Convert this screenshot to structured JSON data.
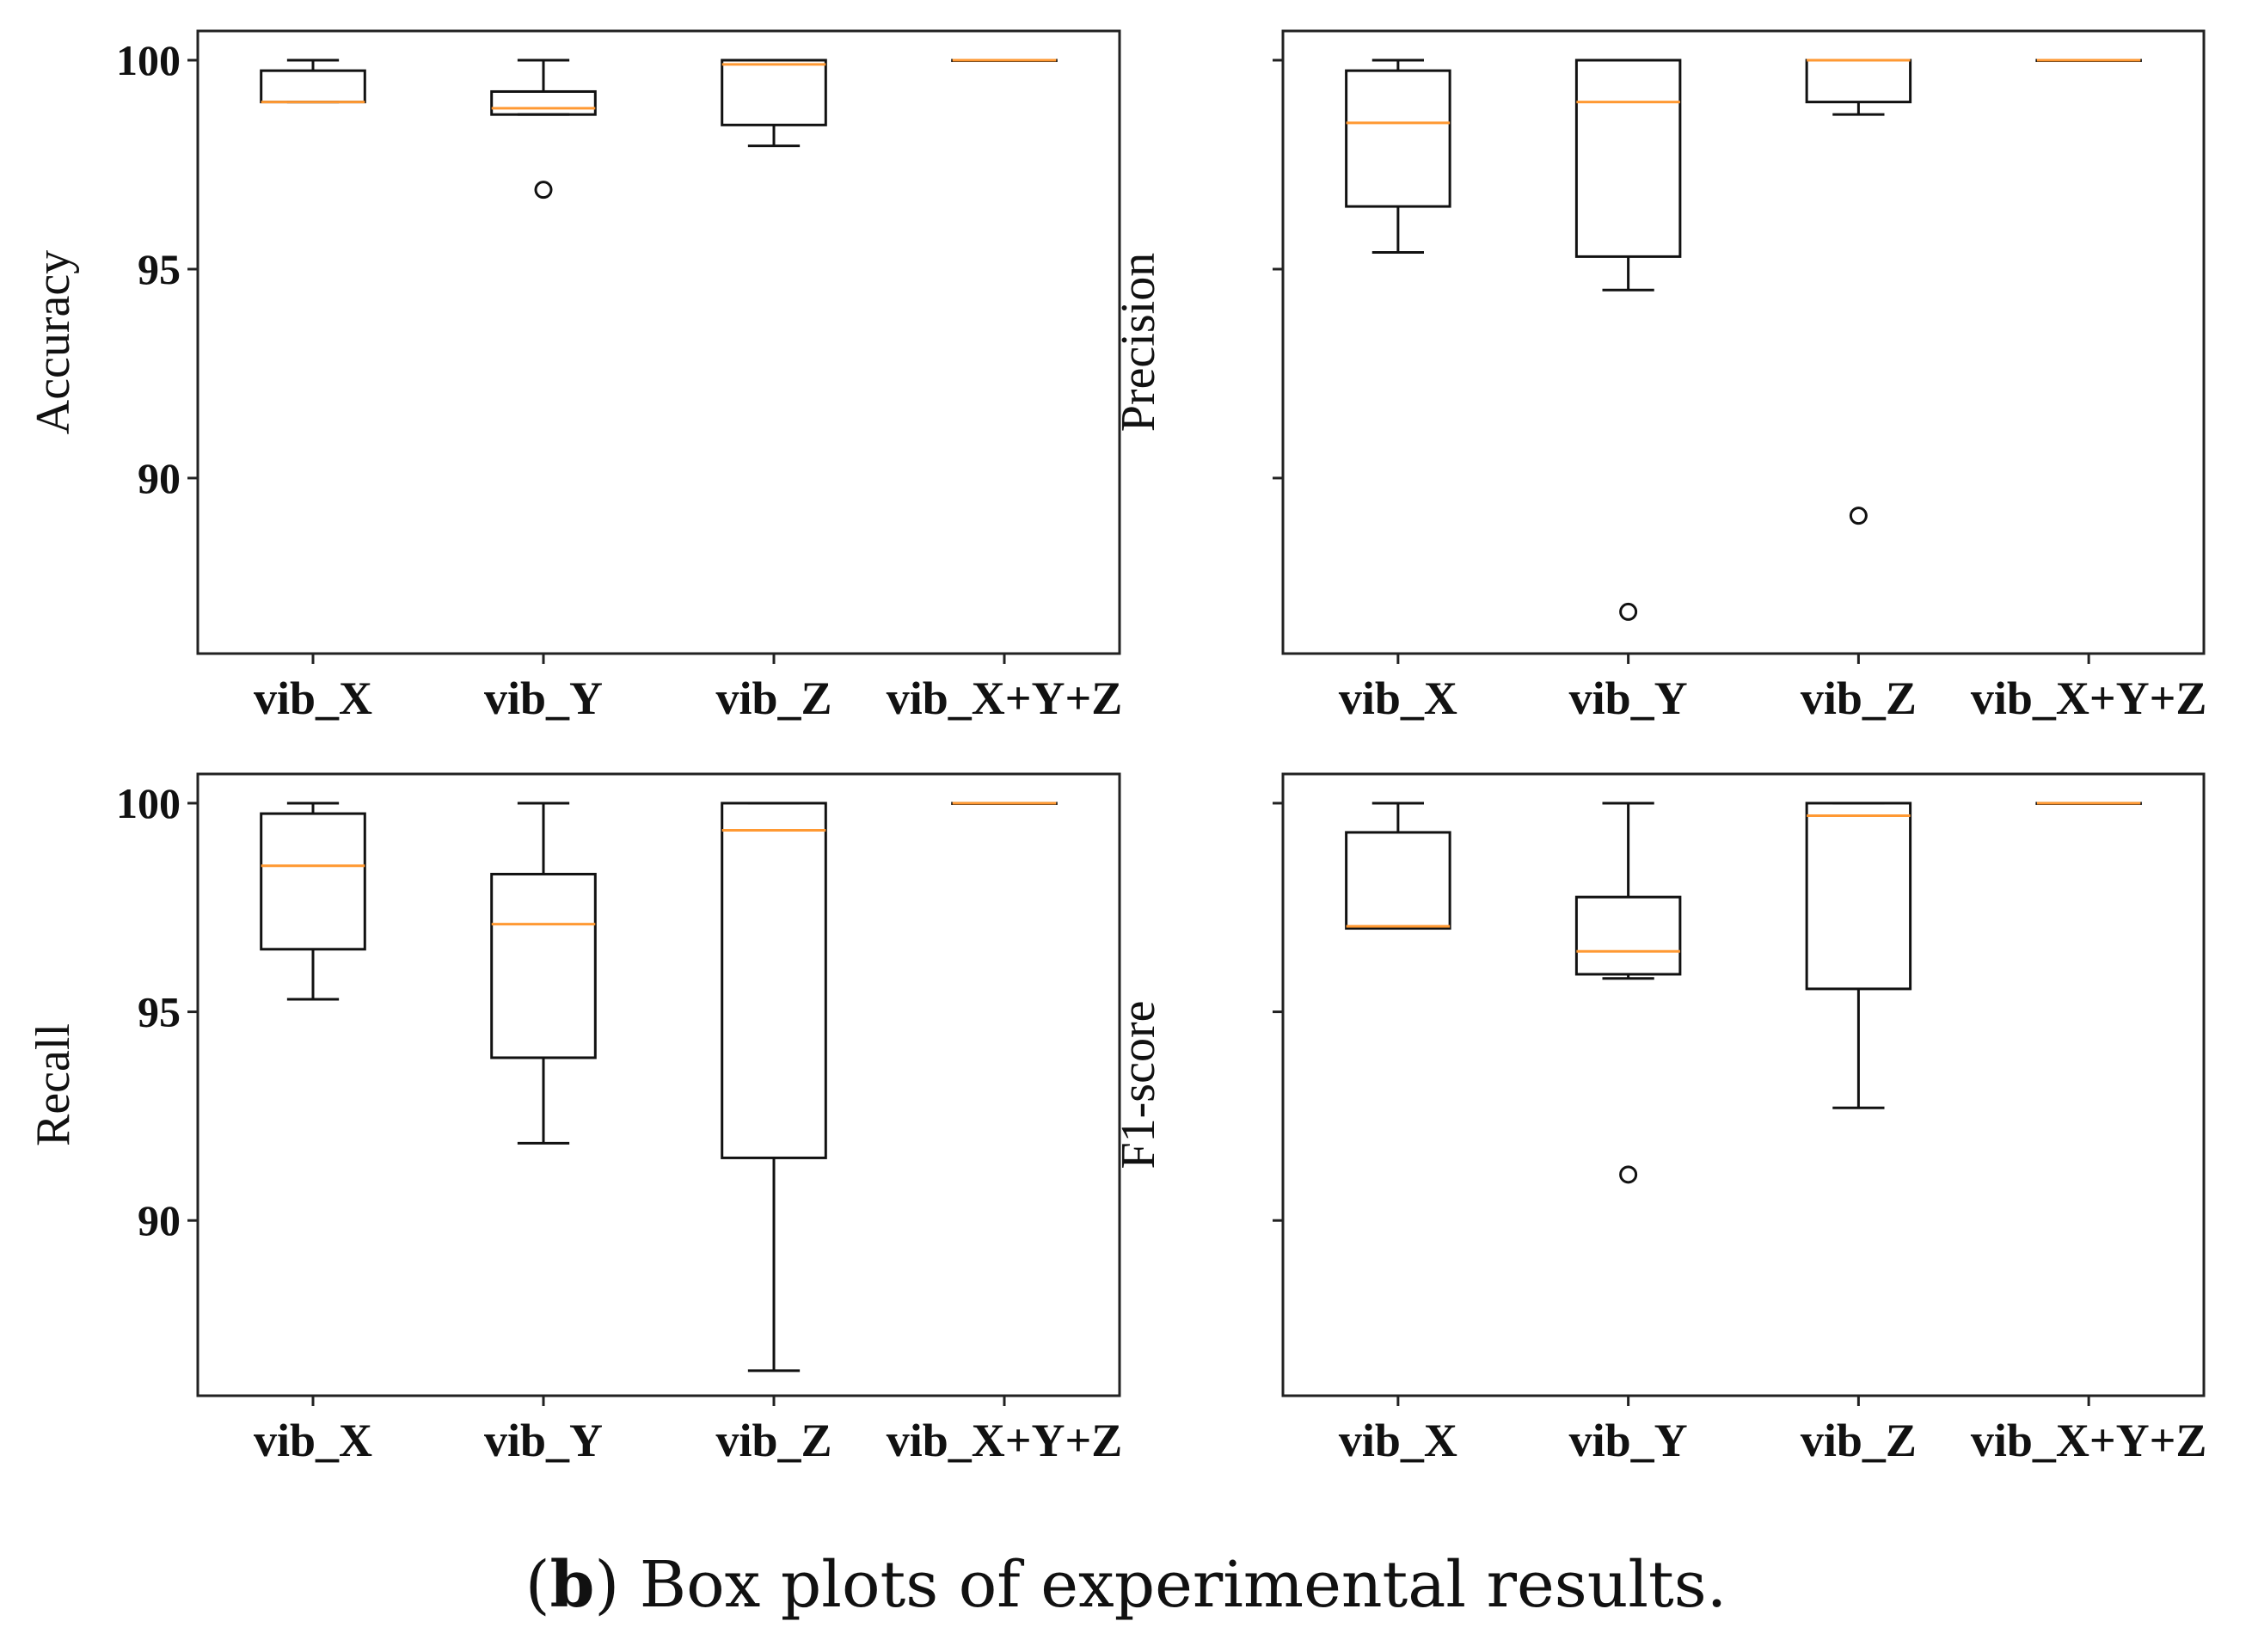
{
  "caption": {
    "letter": "b",
    "open": "(",
    "text": ") Box plots of experimental results."
  },
  "colors": {
    "median": "#ff9933",
    "box": "#111111",
    "axes": "#222222"
  },
  "chart_data": [
    {
      "type": "box",
      "id": "accuracy",
      "ylabel": "Accuracy",
      "ylim": [
        85.8,
        100.7
      ],
      "yticks": [
        90,
        95,
        100
      ],
      "ytick_labels": [
        "90",
        "95",
        "100"
      ],
      "categories": [
        "vib_X",
        "vib_Y",
        "vib_Z",
        "vib_X+Y+Z"
      ],
      "boxes": [
        {
          "whislo": 99.0,
          "q1": 99.0,
          "med": 99.0,
          "q3": 99.75,
          "whishi": 100.0,
          "fliers": []
        },
        {
          "whislo": 98.7,
          "q1": 98.7,
          "med": 98.85,
          "q3": 99.25,
          "whishi": 100.0,
          "fliers": [
            96.9
          ]
        },
        {
          "whislo": 97.95,
          "q1": 98.45,
          "med": 99.9,
          "q3": 100.0,
          "whishi": 100.0,
          "fliers": []
        },
        {
          "whislo": 100.0,
          "q1": 100.0,
          "med": 100.0,
          "q3": 100.0,
          "whishi": 100.0,
          "fliers": []
        }
      ]
    },
    {
      "type": "box",
      "id": "precision",
      "ylabel": "Precision",
      "ylim": [
        85.8,
        100.7
      ],
      "yticks": [
        90,
        95,
        100
      ],
      "ytick_labels": [
        "",
        "",
        ""
      ],
      "categories": [
        "vib_X",
        "vib_Y",
        "vib_Z",
        "vib_X+Y+Z"
      ],
      "boxes": [
        {
          "whislo": 95.4,
          "q1": 96.5,
          "med": 98.5,
          "q3": 99.75,
          "whishi": 100.0,
          "fliers": []
        },
        {
          "whislo": 94.5,
          "q1": 95.3,
          "med": 99.0,
          "q3": 100.0,
          "whishi": 100.0,
          "fliers": [
            86.8
          ]
        },
        {
          "whislo": 98.7,
          "q1": 99.0,
          "med": 100.0,
          "q3": 100.0,
          "whishi": 100.0,
          "fliers": [
            89.1
          ]
        },
        {
          "whislo": 100.0,
          "q1": 100.0,
          "med": 100.0,
          "q3": 100.0,
          "whishi": 100.0,
          "fliers": []
        }
      ]
    },
    {
      "type": "box",
      "id": "recall",
      "ylabel": "Recall",
      "ylim": [
        85.8,
        100.7
      ],
      "yticks": [
        90,
        95,
        100
      ],
      "ytick_labels": [
        "90",
        "95",
        "100"
      ],
      "categories": [
        "vib_X",
        "vib_Y",
        "vib_Z",
        "vib_X+Y+Z"
      ],
      "boxes": [
        {
          "whislo": 95.3,
          "q1": 96.5,
          "med": 98.5,
          "q3": 99.75,
          "whishi": 100.0,
          "fliers": []
        },
        {
          "whislo": 91.85,
          "q1": 93.9,
          "med": 97.1,
          "q3": 98.3,
          "whishi": 100.0,
          "fliers": []
        },
        {
          "whislo": 86.4,
          "q1": 91.5,
          "med": 99.35,
          "q3": 100.0,
          "whishi": 100.0,
          "fliers": []
        },
        {
          "whislo": 100.0,
          "q1": 100.0,
          "med": 100.0,
          "q3": 100.0,
          "whishi": 100.0,
          "fliers": []
        }
      ]
    },
    {
      "type": "box",
      "id": "f1score",
      "ylabel": "F1-score",
      "ylim": [
        85.8,
        100.7
      ],
      "yticks": [
        90,
        95,
        100
      ],
      "ytick_labels": [
        "",
        "",
        ""
      ],
      "categories": [
        "vib_X",
        "vib_Y",
        "vib_Z",
        "vib_X+Y+Z"
      ],
      "boxes": [
        {
          "whislo": 97.0,
          "q1": 97.0,
          "med": 97.05,
          "q3": 99.3,
          "whishi": 100.0,
          "fliers": []
        },
        {
          "whislo": 95.8,
          "q1": 95.9,
          "med": 96.45,
          "q3": 97.75,
          "whishi": 100.0,
          "fliers": [
            91.1
          ]
        },
        {
          "whislo": 92.7,
          "q1": 95.55,
          "med": 99.7,
          "q3": 100.0,
          "whishi": 100.0,
          "fliers": []
        },
        {
          "whislo": 100.0,
          "q1": 100.0,
          "med": 100.0,
          "q3": 100.0,
          "whishi": 100.0,
          "fliers": []
        }
      ]
    }
  ]
}
